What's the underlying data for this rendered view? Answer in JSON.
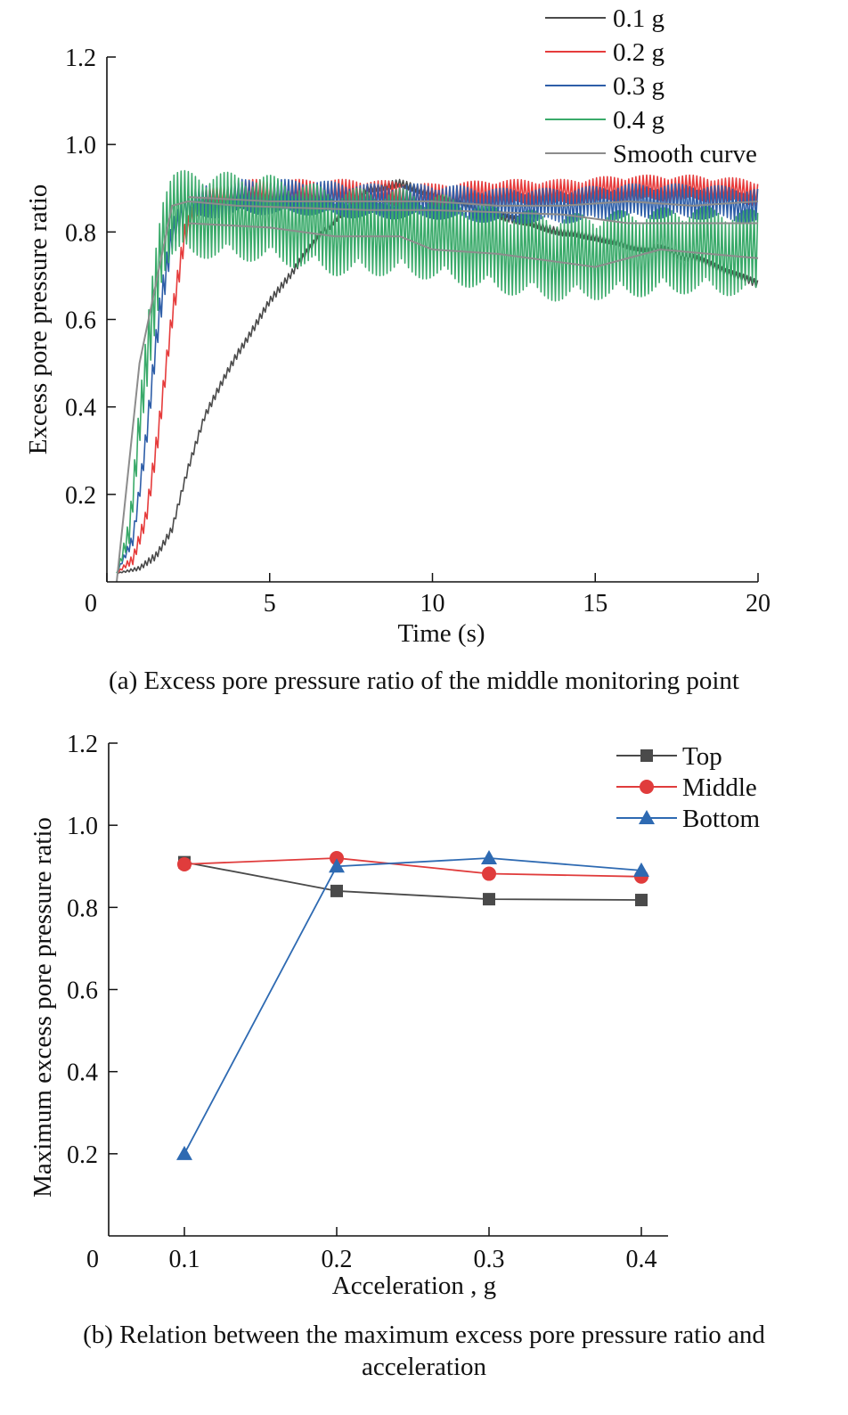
{
  "captions": {
    "a": "(a) Excess pore pressure ratio of the middle monitoring point",
    "b_line1": "(b) Relation between the maximum excess pore pressure ratio and",
    "b_line2": "acceleration"
  },
  "chart_data": [
    {
      "type": "line",
      "title": "",
      "xlabel": "Time (s)",
      "ylabel": "Excess pore pressure ratio",
      "xlim": [
        0,
        20
      ],
      "ylim": [
        0,
        1.2
      ],
      "xticks": [
        0,
        5,
        10,
        15,
        20
      ],
      "yticks": [
        0.2,
        0.4,
        0.6,
        0.8,
        1.0,
        1.2
      ],
      "xtick_labels": [
        "0",
        "5",
        "10",
        "15",
        "20"
      ],
      "ytick_labels": [
        "0.2",
        "0.4",
        "0.6",
        "0.8",
        "1.0",
        "1.2"
      ],
      "legend": [
        "0.1 g",
        "0.2 g",
        "0.3 g",
        "0.4 g",
        "Smooth curve"
      ],
      "legend_position": "top-right",
      "colors": {
        "0.1 g": "#4a4a4a",
        "0.2 g": "#e63c3c",
        "0.3 g": "#2e5ea8",
        "0.4 g": "#3aaa6a",
        "Smooth curve": "#8c8c8c"
      },
      "series": [
        {
          "name": "0.1 g",
          "mean": {
            "x": [
              0.3,
              1,
              1.5,
              2,
              2.5,
              3,
              4,
              5,
              6,
              7,
              8,
              9,
              10,
              11,
              12,
              13,
              14,
              15,
              16,
              17,
              18,
              19,
              20
            ],
            "y": [
              0.02,
              0.03,
              0.06,
              0.12,
              0.26,
              0.38,
              0.52,
              0.64,
              0.74,
              0.83,
              0.9,
              0.91,
              0.89,
              0.86,
              0.84,
              0.82,
              0.8,
              0.79,
              0.77,
              0.76,
              0.74,
              0.71,
              0.68
            ]
          },
          "amplitude": 0.01
        },
        {
          "name": "0.2 g",
          "mean": {
            "x": [
              0.3,
              0.8,
              1.2,
              1.6,
              2.0,
              2.4,
              2.8,
              4,
              6,
              8,
              10,
              12,
              14,
              16,
              18,
              20
            ],
            "y": [
              0.02,
              0.05,
              0.15,
              0.35,
              0.6,
              0.8,
              0.87,
              0.89,
              0.89,
              0.89,
              0.88,
              0.89,
              0.89,
              0.9,
              0.9,
              0.89
            ]
          },
          "amplitude": 0.03
        },
        {
          "name": "0.3 g",
          "mean": {
            "x": [
              0.3,
              0.8,
              1.2,
              1.6,
              2.0,
              2.4,
              4,
              6,
              8,
              10,
              12,
              14,
              16,
              18,
              20
            ],
            "y": [
              0.02,
              0.1,
              0.32,
              0.6,
              0.8,
              0.86,
              0.88,
              0.88,
              0.87,
              0.87,
              0.86,
              0.86,
              0.87,
              0.87,
              0.86
            ]
          },
          "amplitude": 0.04
        },
        {
          "name": "0.4 g",
          "mean": {
            "x": [
              0.3,
              0.7,
              1.0,
              1.4,
              1.7,
              2.0,
              3,
              5,
              7,
              9,
              10,
              12,
              14,
              16,
              18,
              20
            ],
            "y": [
              0.02,
              0.12,
              0.35,
              0.62,
              0.8,
              0.84,
              0.84,
              0.83,
              0.8,
              0.8,
              0.79,
              0.76,
              0.74,
              0.75,
              0.76,
              0.75
            ]
          },
          "amplitude": 0.1
        },
        {
          "name": "Smooth curve",
          "lines": [
            {
              "x": [
                0.3,
                1,
                2,
                2.5,
                4,
                8,
                10,
                14,
                16,
                20
              ],
              "y": [
                0.0,
                0.5,
                0.86,
                0.87,
                0.86,
                0.85,
                0.85,
                0.84,
                0.82,
                0.82
              ]
            },
            {
              "x": [
                2.5,
                5,
                8,
                10,
                12,
                14,
                16,
                18,
                20
              ],
              "y": [
                0.88,
                0.87,
                0.87,
                0.87,
                0.86,
                0.86,
                0.87,
                0.86,
                0.87
              ]
            },
            {
              "x": [
                2.5,
                5,
                7,
                9,
                10,
                12,
                15,
                17,
                20
              ],
              "y": [
                0.82,
                0.81,
                0.79,
                0.79,
                0.76,
                0.75,
                0.72,
                0.76,
                0.74
              ]
            }
          ]
        }
      ]
    },
    {
      "type": "line",
      "title": "",
      "xlabel": "Acceleration , g",
      "ylabel": "Maximum excess pore pressure ratio",
      "xlim": [
        0,
        0.45
      ],
      "ylim": [
        0,
        1.2
      ],
      "categories": [
        0.1,
        0.2,
        0.3,
        0.4
      ],
      "xtick_labels": [
        "0",
        "0.1",
        "0.2",
        "0.3",
        "0.4"
      ],
      "ytick_labels": [
        "0.2",
        "0.4",
        "0.6",
        "0.8",
        "1.0",
        "1.2"
      ],
      "yticks": [
        0.2,
        0.4,
        0.6,
        0.8,
        1.0,
        1.2
      ],
      "legend_position": "top-right",
      "series": [
        {
          "name": "Top",
          "marker": "square",
          "color": "#4a4a4a",
          "values": [
            0.91,
            0.84,
            0.82,
            0.818
          ]
        },
        {
          "name": "Middle",
          "marker": "circle",
          "color": "#e03c3c",
          "values": [
            0.905,
            0.92,
            0.882,
            0.875
          ]
        },
        {
          "name": "Bottom",
          "marker": "triangle",
          "color": "#2e6ab2",
          "values": [
            0.2,
            0.9,
            0.92,
            0.89
          ]
        }
      ]
    }
  ]
}
